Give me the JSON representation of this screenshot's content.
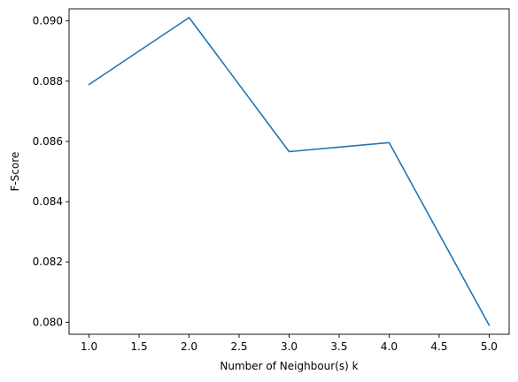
{
  "chart_data": {
    "type": "line",
    "title": "",
    "xlabel": "Number of Neighbour(s) k",
    "ylabel": "F-Score",
    "x": [
      1.0,
      2.0,
      3.0,
      4.0,
      5.0
    ],
    "series": [
      {
        "values": [
          0.08789,
          0.09011,
          0.08566,
          0.08596,
          0.0799
        ],
        "color": "#1f77b4"
      }
    ],
    "xlim": [
      0.8,
      5.2
    ],
    "ylim": [
      0.0796,
      0.0904
    ],
    "xticks": [
      1.0,
      1.5,
      2.0,
      2.5,
      3.0,
      3.5,
      4.0,
      4.5,
      5.0
    ],
    "xtick_labels": [
      "1.0",
      "1.5",
      "2.0",
      "2.5",
      "3.0",
      "3.5",
      "4.0",
      "4.5",
      "5.0"
    ],
    "yticks": [
      0.08,
      0.082,
      0.084,
      0.086,
      0.088,
      0.09
    ],
    "ytick_labels": [
      "0.080",
      "0.082",
      "0.084",
      "0.086",
      "0.088",
      "0.090"
    ],
    "grid": false,
    "legend": "none"
  }
}
